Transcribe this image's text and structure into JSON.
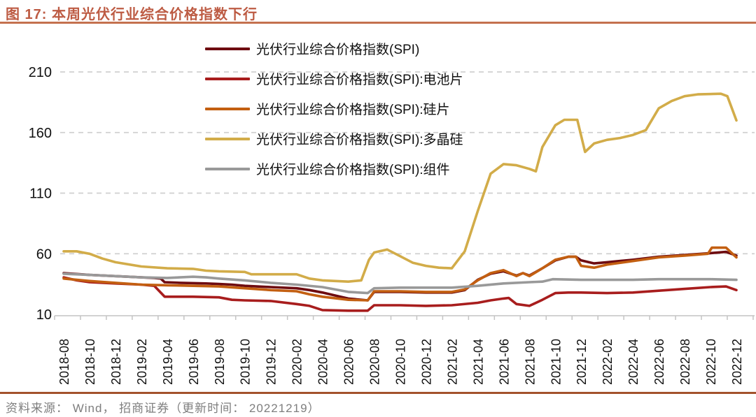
{
  "figure": {
    "title": "图 17:  本周光伏行业综合价格指数下行"
  },
  "footer": {
    "source_text": "资料来源： Wind， 招商证券（更新时间： 20221219）"
  },
  "colors": {
    "title_accent": "#bd5b43",
    "title_rule": "#c4714e",
    "footer_rule": "#a3522c",
    "grid": "#d0d0d0",
    "axis": "#c4c4c4",
    "tick_label": "#111111"
  },
  "chart_data": {
    "type": "line",
    "title": "本周光伏行业综合价格指数下行",
    "xlabel": "",
    "ylabel": "",
    "grid": "horizontal-dashed",
    "legend_position": "top-center",
    "ylim": [
      10,
      215
    ],
    "y_ticks": [
      10,
      60,
      110,
      160,
      210
    ],
    "x_unit": "months-since-2018-08",
    "x_range_months": [
      0,
      52
    ],
    "x_tick_labels": [
      "2018-08",
      "2018-10",
      "2018-12",
      "2019-02",
      "2019-04",
      "2019-06",
      "2019-08",
      "2019-10",
      "2019-12",
      "2020-02",
      "2020-04",
      "2020-06",
      "2020-08",
      "2020-10",
      "2020-12",
      "2021-02",
      "2021-04",
      "2021-06",
      "2021-08",
      "2021-10",
      "2021-12",
      "2022-02",
      "2022-04",
      "2022-06",
      "2022-08",
      "2022-10",
      "2022-12"
    ],
    "series": [
      {
        "name": "光伏行业综合价格指数(SPI)",
        "color": "#6e0b10",
        "points": [
          [
            0,
            44
          ],
          [
            2,
            42.5
          ],
          [
            4,
            41.5
          ],
          [
            6,
            40.5
          ],
          [
            7,
            40
          ],
          [
            7.5,
            39.5
          ],
          [
            7.8,
            36.5
          ],
          [
            9,
            36
          ],
          [
            11,
            35.5
          ],
          [
            12,
            35
          ],
          [
            13,
            34.5
          ],
          [
            14,
            33.5
          ],
          [
            16,
            32.5
          ],
          [
            18,
            31.5
          ],
          [
            19,
            30
          ],
          [
            20,
            28
          ],
          [
            21,
            25.5
          ],
          [
            22,
            23
          ],
          [
            23.5,
            21.5
          ],
          [
            24,
            28.5
          ],
          [
            26,
            28.5
          ],
          [
            28,
            28
          ],
          [
            30,
            28
          ],
          [
            31,
            30
          ],
          [
            32,
            38.5
          ],
          [
            33,
            43.5
          ],
          [
            34,
            45.5
          ],
          [
            35,
            42
          ],
          [
            35.5,
            44
          ],
          [
            36,
            42
          ],
          [
            37,
            48
          ],
          [
            38,
            54.5
          ],
          [
            39,
            57.5
          ],
          [
            39.6,
            57.5
          ],
          [
            40,
            54.5
          ],
          [
            41,
            52
          ],
          [
            42,
            53
          ],
          [
            44,
            55
          ],
          [
            46,
            57.5
          ],
          [
            48,
            59
          ],
          [
            50,
            60.5
          ],
          [
            51.2,
            61.5
          ],
          [
            52,
            58.5
          ]
        ]
      },
      {
        "name": "光伏行业综合价格指数(SPI):电池片",
        "color": "#a81d1d",
        "points": [
          [
            0,
            40.5
          ],
          [
            1,
            38
          ],
          [
            2,
            36.5
          ],
          [
            4,
            35.5
          ],
          [
            6,
            34.5
          ],
          [
            7,
            33.5
          ],
          [
            7.8,
            24.5
          ],
          [
            10,
            24.5
          ],
          [
            12,
            24
          ],
          [
            13,
            22
          ],
          [
            14,
            21.5
          ],
          [
            16,
            21
          ],
          [
            18,
            18.5
          ],
          [
            19,
            17
          ],
          [
            20,
            13.5
          ],
          [
            22,
            13
          ],
          [
            23.5,
            13
          ],
          [
            24,
            17.5
          ],
          [
            26,
            17.5
          ],
          [
            28,
            17
          ],
          [
            30,
            17.5
          ],
          [
            32,
            19.5
          ],
          [
            33,
            21.5
          ],
          [
            34,
            23
          ],
          [
            34.4,
            23.5
          ],
          [
            35,
            18.5
          ],
          [
            36,
            17
          ],
          [
            37,
            22
          ],
          [
            38,
            27.5
          ],
          [
            39,
            28
          ],
          [
            40,
            28
          ],
          [
            42,
            27.5
          ],
          [
            44,
            28
          ],
          [
            46,
            29.5
          ],
          [
            48,
            31
          ],
          [
            50,
            32.5
          ],
          [
            51.2,
            33
          ],
          [
            52,
            30
          ]
        ]
      },
      {
        "name": "光伏行业综合价格指数(SPI):硅片",
        "color": "#c35f11",
        "points": [
          [
            0,
            39.5
          ],
          [
            1,
            38.5
          ],
          [
            2,
            37.5
          ],
          [
            4,
            36
          ],
          [
            6,
            34.5
          ],
          [
            8,
            34
          ],
          [
            10,
            33.5
          ],
          [
            12,
            33
          ],
          [
            14,
            31.5
          ],
          [
            16,
            30
          ],
          [
            18,
            29
          ],
          [
            19,
            26.5
          ],
          [
            20,
            24.5
          ],
          [
            22,
            22
          ],
          [
            23.5,
            21.5
          ],
          [
            24,
            29
          ],
          [
            26,
            29
          ],
          [
            28,
            28.5
          ],
          [
            30,
            28.5
          ],
          [
            31,
            30.5
          ],
          [
            32,
            38
          ],
          [
            33,
            44
          ],
          [
            34,
            46.5
          ],
          [
            35,
            41.5
          ],
          [
            35.5,
            44
          ],
          [
            36,
            41.5
          ],
          [
            37,
            48
          ],
          [
            38,
            55
          ],
          [
            39,
            57.5
          ],
          [
            39.6,
            57.5
          ],
          [
            40,
            50
          ],
          [
            41,
            48.5
          ],
          [
            42,
            51
          ],
          [
            44,
            54
          ],
          [
            46,
            57
          ],
          [
            48,
            58.5
          ],
          [
            49.8,
            60
          ],
          [
            50.1,
            65
          ],
          [
            51.2,
            65
          ],
          [
            52,
            57
          ]
        ]
      },
      {
        "name": "光伏行业综合价格指数(SPI):多晶硅",
        "color": "#d2ac49",
        "points": [
          [
            0,
            62
          ],
          [
            1,
            62
          ],
          [
            2,
            60
          ],
          [
            3,
            56
          ],
          [
            4,
            53
          ],
          [
            6,
            49.5
          ],
          [
            8,
            48
          ],
          [
            10,
            47.5
          ],
          [
            11,
            46
          ],
          [
            12,
            45.5
          ],
          [
            14,
            45
          ],
          [
            14.5,
            43
          ],
          [
            16,
            43
          ],
          [
            18,
            43
          ],
          [
            19,
            39.5
          ],
          [
            20,
            38
          ],
          [
            22,
            37
          ],
          [
            23,
            38
          ],
          [
            23.6,
            55
          ],
          [
            24,
            61
          ],
          [
            25,
            63.5
          ],
          [
            26,
            58
          ],
          [
            27,
            52.5
          ],
          [
            28,
            50
          ],
          [
            29,
            48.5
          ],
          [
            30,
            48
          ],
          [
            31,
            62
          ],
          [
            32,
            95
          ],
          [
            33,
            126
          ],
          [
            34,
            134
          ],
          [
            35,
            133
          ],
          [
            36,
            130
          ],
          [
            36.5,
            128
          ],
          [
            37,
            148
          ],
          [
            38,
            166
          ],
          [
            38.7,
            170.5
          ],
          [
            39.7,
            170.5
          ],
          [
            40.3,
            144
          ],
          [
            41,
            151
          ],
          [
            42,
            154
          ],
          [
            43,
            155.5
          ],
          [
            44,
            158
          ],
          [
            45,
            162
          ],
          [
            46,
            180
          ],
          [
            47,
            186
          ],
          [
            48,
            190
          ],
          [
            49,
            191.5
          ],
          [
            50.8,
            192
          ],
          [
            51.3,
            190
          ],
          [
            52,
            170
          ]
        ]
      },
      {
        "name": "光伏行业综合价格指数(SPI):组件",
        "color": "#999999",
        "points": [
          [
            0,
            43.5
          ],
          [
            2,
            42.5
          ],
          [
            4,
            41.5
          ],
          [
            6,
            40.5
          ],
          [
            8,
            40
          ],
          [
            10,
            41
          ],
          [
            11,
            40.5
          ],
          [
            12,
            39.5
          ],
          [
            14,
            38
          ],
          [
            16,
            36
          ],
          [
            18,
            34.5
          ],
          [
            20,
            32.5
          ],
          [
            22,
            28.5
          ],
          [
            23.5,
            27.5
          ],
          [
            24,
            31.5
          ],
          [
            26,
            32
          ],
          [
            28,
            32
          ],
          [
            30,
            32
          ],
          [
            32,
            33.5
          ],
          [
            34,
            35.5
          ],
          [
            36,
            36.5
          ],
          [
            37,
            37
          ],
          [
            37.8,
            39
          ],
          [
            40,
            38.5
          ],
          [
            44,
            38.5
          ],
          [
            46,
            39
          ],
          [
            50,
            39
          ],
          [
            52,
            38.5
          ]
        ]
      }
    ]
  }
}
